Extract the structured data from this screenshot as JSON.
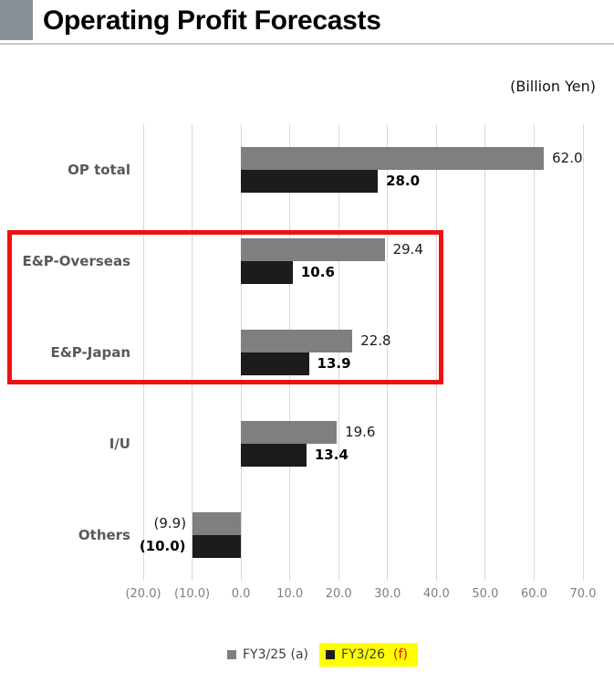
{
  "header": {
    "title": "Operating Profit Forecasts",
    "unit_label": "(Billion Yen)"
  },
  "chart_data": {
    "type": "bar",
    "orientation": "horizontal",
    "title": "Operating Profit Forecasts",
    "unit": "Billion Yen",
    "categories": [
      "OP total",
      "E&P-Overseas",
      "E&P-Japan",
      "I/U",
      "Others"
    ],
    "series": [
      {
        "name": "FY3/25 (a)",
        "color": "#7f7f7f",
        "values": [
          62.0,
          29.4,
          22.8,
          19.6,
          -9.9
        ],
        "labels": [
          "62.0",
          "29.4",
          "22.8",
          "19.6",
          "(9.9)"
        ],
        "bold_labels": false
      },
      {
        "name": "FY3/26 (f)",
        "color": "#1c1c1c",
        "values": [
          28.0,
          10.6,
          13.9,
          13.4,
          -10.0
        ],
        "labels": [
          "28.0",
          "10.6",
          "13.9",
          "13.4",
          "(10.0)"
        ],
        "bold_labels": true
      }
    ],
    "xaxis": {
      "min": -20,
      "max": 70,
      "step": 10,
      "tick_labels": [
        "(20.0)",
        "(10.0)",
        "0.0",
        "10.0",
        "20.0",
        "30.0",
        "40.0",
        "50.0",
        "60.0",
        "70.0"
      ]
    },
    "grid": true,
    "legend_position": "bottom",
    "highlighted_categories": [
      "E&P-Overseas",
      "E&P-Japan"
    ]
  },
  "legend": {
    "items": [
      {
        "label": "FY3/25 (a)",
        "swatch_color": "#7f7f7f"
      },
      {
        "label": "FY3/26",
        "suffix": "(f)",
        "swatch_color": "#1c1c1c",
        "highlight_color": "#ffff00",
        "suffix_color": "#ff0000"
      }
    ]
  },
  "colors": {
    "highlight_box": "#ee1111",
    "gridline": "#d9d9d9",
    "category_label": "#595959",
    "tick_label": "#7f7f7f",
    "corner_square": "#898f96",
    "title_underline": "#c9c9c9"
  }
}
